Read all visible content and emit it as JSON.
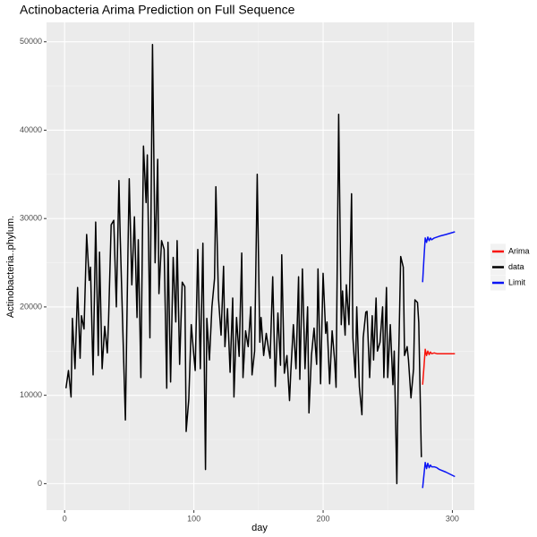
{
  "chart_data": {
    "type": "line",
    "title": "Actinobacteria Arima Prediction on Full Sequence",
    "xlabel": "day",
    "ylabel": "Actinobacteria..phylum.",
    "xlim": [
      -14,
      317
    ],
    "ylim": [
      -3000,
      52200
    ],
    "xticks": [
      0,
      100,
      200,
      300
    ],
    "yticks": [
      0,
      10000,
      20000,
      30000,
      40000,
      50000
    ],
    "xminor": [
      50,
      150,
      250
    ],
    "yminor": [
      5000,
      15000,
      25000,
      35000,
      45000
    ],
    "grid": true,
    "legend": "right",
    "series": [
      {
        "name": "Arima",
        "color": "#f8140c",
        "x": [
          277,
          278,
          279,
          280,
          281,
          282,
          283,
          284,
          286,
          288,
          290,
          295,
          302
        ],
        "values": [
          11200,
          13200,
          15200,
          14500,
          15000,
          14600,
          14900,
          14700,
          14800,
          14700,
          14700,
          14700,
          14700
        ]
      },
      {
        "name": "data",
        "color": "#000000",
        "x": [
          1,
          3,
          5,
          6,
          8,
          10,
          12,
          13,
          15,
          17,
          19,
          20,
          22,
          24,
          26,
          27,
          29,
          31,
          33,
          34,
          36,
          38,
          40,
          42,
          43,
          45,
          47,
          49,
          50,
          52,
          54,
          56,
          57,
          59,
          61,
          63,
          64,
          66,
          68,
          70,
          72,
          73,
          75,
          77,
          79,
          80,
          82,
          84,
          86,
          87,
          89,
          91,
          93,
          94,
          96,
          98,
          100,
          101,
          103,
          105,
          107,
          109,
          110,
          112,
          114,
          116,
          117,
          119,
          121,
          123,
          124,
          126,
          128,
          130,
          131,
          133,
          135,
          137,
          138,
          140,
          142,
          144,
          145,
          147,
          149,
          151,
          152,
          154,
          156,
          158,
          159,
          161,
          163,
          165,
          167,
          168,
          170,
          172,
          174,
          175,
          177,
          179,
          181,
          182,
          184,
          186,
          188,
          189,
          191,
          193,
          195,
          196,
          198,
          200,
          202,
          203,
          205,
          207,
          209,
          210,
          212,
          214,
          215,
          217,
          218,
          220,
          222,
          223,
          225,
          226,
          228,
          230,
          231,
          233,
          234,
          236,
          238,
          239,
          241,
          242,
          244,
          246,
          247,
          249,
          250,
          252,
          254,
          255,
          257,
          258,
          260,
          262,
          263,
          265,
          266,
          268,
          270,
          271,
          273,
          274,
          276
        ],
        "values": [
          10800,
          12800,
          9800,
          18700,
          13000,
          22200,
          14200,
          19000,
          17500,
          28200,
          23000,
          24500,
          12300,
          29600,
          14500,
          26200,
          13000,
          17800,
          14800,
          18500,
          29300,
          29800,
          20000,
          34300,
          28000,
          17500,
          7200,
          26500,
          34500,
          22500,
          30200,
          18800,
          27600,
          12000,
          38200,
          31800,
          37200,
          16500,
          49700,
          25000,
          36700,
          21500,
          27500,
          26500,
          10800,
          27300,
          11500,
          25600,
          18300,
          27500,
          13500,
          22800,
          22300,
          5900,
          9500,
          18000,
          14500,
          12800,
          26500,
          13000,
          27200,
          1600,
          18700,
          14000,
          20000,
          23200,
          33600,
          21000,
          16800,
          24600,
          15500,
          19800,
          12600,
          21000,
          9800,
          18800,
          14400,
          26100,
          12000,
          17300,
          15500,
          20000,
          12300,
          15000,
          35000,
          16000,
          18800,
          14500,
          17000,
          15000,
          14200,
          23400,
          11000,
          19300,
          13400,
          25900,
          12500,
          14500,
          9400,
          12600,
          18000,
          13000,
          23400,
          11800,
          24300,
          13000,
          20000,
          8000,
          14500,
          17600,
          13500,
          24300,
          11300,
          23800,
          17000,
          18300,
          11300,
          17300,
          13800,
          10900,
          41800,
          18000,
          21800,
          16800,
          22500,
          18000,
          32800,
          16500,
          12000,
          20000,
          11000,
          7800,
          16500,
          19400,
          19500,
          12000,
          19000,
          14000,
          21000,
          15000,
          16000,
          20000,
          12000,
          22200,
          12000,
          18000,
          11200,
          15000,
          0,
          11000,
          25700,
          24500,
          14500,
          15500,
          14000,
          9700,
          13000,
          20800,
          20500,
          18200,
          3000
        ]
      },
      {
        "name": "Limit",
        "color": "#0a14f5",
        "x": [
          277,
          278,
          279,
          280,
          281,
          282,
          283,
          284,
          286,
          288,
          290,
          295,
          302
        ],
        "values": [
          22800,
          25500,
          27800,
          27300,
          27900,
          27500,
          27800,
          27600,
          27800,
          27900,
          28000,
          28200,
          28500
        ],
        "lower_values": [
          -500,
          1000,
          2400,
          1700,
          2300,
          1800,
          2100,
          1900,
          1900,
          1800,
          1600,
          1300,
          800
        ]
      }
    ]
  }
}
